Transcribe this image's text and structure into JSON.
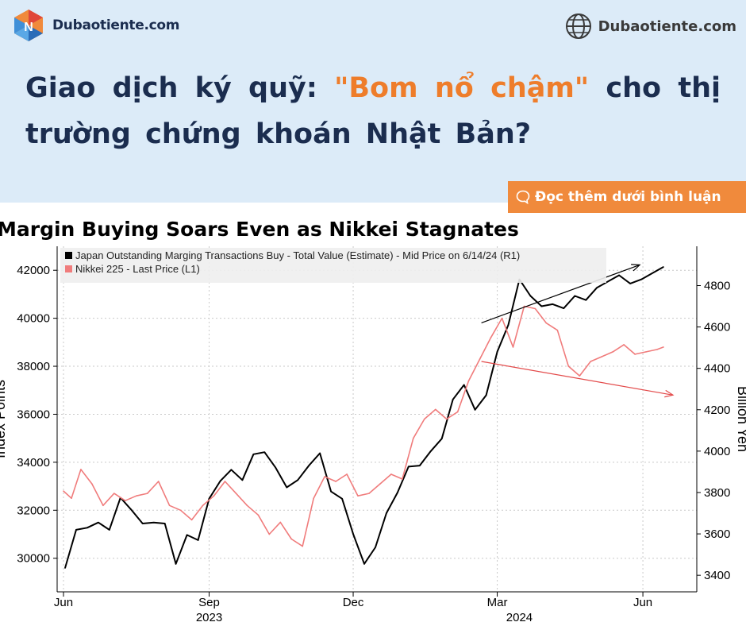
{
  "brand": {
    "logo_text": "Dubaotiente.com",
    "site_right_text": "Dubaotiente.com"
  },
  "headline": {
    "part1": "Giao dịch ký quỹ: ",
    "highlight": "\"Bom nổ chậm\"",
    "part2": " cho thị trường chứng khoán Nhật Bản?"
  },
  "cta": {
    "label": "Đọc thêm dưới bình luận"
  },
  "colors": {
    "header_bg": "#dcebf8",
    "accent": "#ee7d2b",
    "navy": "#1b2d4f",
    "series_black": "#000000",
    "series_red": "#f07c7c"
  },
  "chart_data": {
    "type": "line",
    "title": "Margin Buying Soars Even as Nikkei Stagnates",
    "ylabel_left": "Index Points",
    "ylabel_right": "Billion Yen",
    "x_tick_labels": [
      "Jun",
      "Sep",
      "Dec",
      "Mar",
      "Jun"
    ],
    "x_year_labels": [
      "2023",
      "2024"
    ],
    "x_range": [
      "2023-06-01",
      "2024-06-14"
    ],
    "yleft_ticks": [
      30000,
      32000,
      34000,
      36000,
      38000,
      40000,
      42000
    ],
    "yleft_range": [
      28600,
      43000
    ],
    "yright_ticks": [
      3400,
      3600,
      3800,
      4000,
      4200,
      4400,
      4600,
      4800
    ],
    "yright_range": [
      3320,
      4990
    ],
    "grid": true,
    "legend_position": "top-left",
    "series": [
      {
        "name": "Japan Outstanding Marging Transactions Buy - Total Value (Estimate) - Mid Price on 6/14/24 (R1)",
        "axis": "right",
        "color": "#000000",
        "points": [
          [
            "2023-06-02",
            3435
          ],
          [
            "2023-06-09",
            3620
          ],
          [
            "2023-06-16",
            3630
          ],
          [
            "2023-06-23",
            3655
          ],
          [
            "2023-06-30",
            3620
          ],
          [
            "2023-07-07",
            3775
          ],
          [
            "2023-07-14",
            3715
          ],
          [
            "2023-07-21",
            3650
          ],
          [
            "2023-07-28",
            3655
          ],
          [
            "2023-08-04",
            3650
          ],
          [
            "2023-08-11",
            3455
          ],
          [
            "2023-08-18",
            3595
          ],
          [
            "2023-08-25",
            3570
          ],
          [
            "2023-09-01",
            3770
          ],
          [
            "2023-09-08",
            3855
          ],
          [
            "2023-09-15",
            3910
          ],
          [
            "2023-09-22",
            3860
          ],
          [
            "2023-09-29",
            3985
          ],
          [
            "2023-10-06",
            3995
          ],
          [
            "2023-10-13",
            3920
          ],
          [
            "2023-10-20",
            3825
          ],
          [
            "2023-10-27",
            3860
          ],
          [
            "2023-11-03",
            3930
          ],
          [
            "2023-11-10",
            3990
          ],
          [
            "2023-11-17",
            3805
          ],
          [
            "2023-11-24",
            3770
          ],
          [
            "2023-12-01",
            3600
          ],
          [
            "2023-12-08",
            3455
          ],
          [
            "2023-12-15",
            3535
          ],
          [
            "2023-12-22",
            3700
          ],
          [
            "2023-12-29",
            3800
          ],
          [
            "2024-01-05",
            3925
          ],
          [
            "2024-01-12",
            3930
          ],
          [
            "2024-01-19",
            4000
          ],
          [
            "2024-01-26",
            4060
          ],
          [
            "2024-02-02",
            4250
          ],
          [
            "2024-02-09",
            4320
          ],
          [
            "2024-02-16",
            4200
          ],
          [
            "2024-02-23",
            4270
          ],
          [
            "2024-03-01",
            4480
          ],
          [
            "2024-03-08",
            4610
          ],
          [
            "2024-03-15",
            4830
          ],
          [
            "2024-03-22",
            4750
          ],
          [
            "2024-03-29",
            4700
          ],
          [
            "2024-04-05",
            4710
          ],
          [
            "2024-04-12",
            4690
          ],
          [
            "2024-04-19",
            4750
          ],
          [
            "2024-04-26",
            4730
          ],
          [
            "2024-05-03",
            4790
          ],
          [
            "2024-05-10",
            4820
          ],
          [
            "2024-05-17",
            4850
          ],
          [
            "2024-05-24",
            4810
          ],
          [
            "2024-05-31",
            4830
          ],
          [
            "2024-06-07",
            4860
          ],
          [
            "2024-06-14",
            4890
          ]
        ]
      },
      {
        "name": "Nikkei 225 - Last Price (L1)",
        "axis": "left",
        "color": "#f07c7c",
        "points": [
          [
            "2023-06-01",
            32800
          ],
          [
            "2023-06-06",
            32500
          ],
          [
            "2023-06-12",
            33700
          ],
          [
            "2023-06-19",
            33100
          ],
          [
            "2023-06-26",
            32200
          ],
          [
            "2023-07-03",
            32700
          ],
          [
            "2023-07-10",
            32400
          ],
          [
            "2023-07-17",
            32600
          ],
          [
            "2023-07-24",
            32700
          ],
          [
            "2023-07-31",
            33200
          ],
          [
            "2023-08-07",
            32200
          ],
          [
            "2023-08-14",
            32000
          ],
          [
            "2023-08-21",
            31600
          ],
          [
            "2023-08-28",
            32200
          ],
          [
            "2023-09-04",
            32600
          ],
          [
            "2023-09-11",
            33200
          ],
          [
            "2023-09-18",
            32700
          ],
          [
            "2023-09-25",
            32200
          ],
          [
            "2023-10-02",
            31800
          ],
          [
            "2023-10-09",
            31000
          ],
          [
            "2023-10-16",
            31500
          ],
          [
            "2023-10-23",
            30800
          ],
          [
            "2023-10-30",
            30500
          ],
          [
            "2023-11-06",
            32500
          ],
          [
            "2023-11-13",
            33400
          ],
          [
            "2023-11-20",
            33200
          ],
          [
            "2023-11-27",
            33500
          ],
          [
            "2023-12-04",
            32600
          ],
          [
            "2023-12-11",
            32700
          ],
          [
            "2023-12-18",
            33100
          ],
          [
            "2023-12-25",
            33500
          ],
          [
            "2024-01-01",
            33300
          ],
          [
            "2024-01-08",
            35000
          ],
          [
            "2024-01-15",
            35800
          ],
          [
            "2024-01-22",
            36200
          ],
          [
            "2024-01-29",
            35800
          ],
          [
            "2024-02-05",
            36100
          ],
          [
            "2024-02-12",
            37400
          ],
          [
            "2024-02-19",
            38300
          ],
          [
            "2024-02-26",
            39200
          ],
          [
            "2024-03-04",
            40000
          ],
          [
            "2024-03-11",
            38800
          ],
          [
            "2024-03-18",
            40500
          ],
          [
            "2024-03-25",
            40400
          ],
          [
            "2024-04-01",
            39800
          ],
          [
            "2024-04-08",
            39500
          ],
          [
            "2024-04-15",
            38000
          ],
          [
            "2024-04-22",
            37600
          ],
          [
            "2024-04-29",
            38200
          ],
          [
            "2024-05-06",
            38400
          ],
          [
            "2024-05-13",
            38600
          ],
          [
            "2024-05-20",
            38900
          ],
          [
            "2024-05-27",
            38500
          ],
          [
            "2024-06-03",
            38600
          ],
          [
            "2024-06-10",
            38700
          ],
          [
            "2024-06-14",
            38800
          ]
        ]
      }
    ],
    "annotations": [
      {
        "type": "arrow",
        "color": "#000000",
        "from": [
          "2024-02-20",
          4620
        ],
        "to": [
          "2024-05-30",
          4900
        ],
        "axis": "right"
      },
      {
        "type": "arrow",
        "color": "#e34a4a",
        "from": [
          "2024-02-20",
          38200
        ],
        "to": [
          "2024-06-20",
          36800
        ],
        "axis": "left"
      }
    ]
  }
}
